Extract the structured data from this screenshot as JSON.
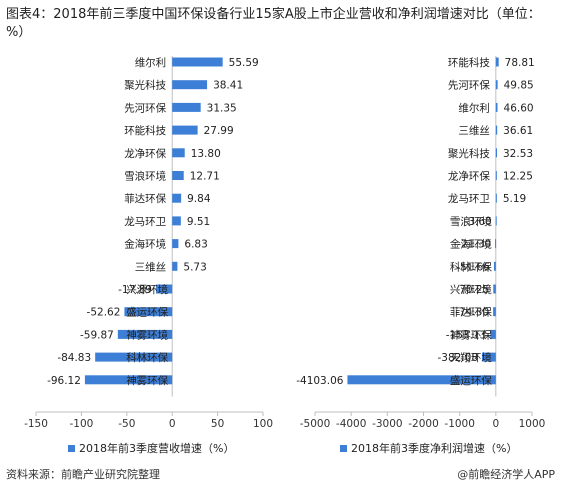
{
  "title": "图表4：2018年前三季度中国环保设备行业15家A股上市企业营收和净利润增速对比（单位：%）",
  "footer": {
    "source": "资料来源：前瞻产业研究院整理",
    "brand": "@前瞻经济学人APP"
  },
  "colors": {
    "bar": "#3d7fd6",
    "axis": "#bfbfbf",
    "legend_swatch": "#3d7fd6"
  },
  "chart_data": [
    {
      "type": "bar",
      "orientation": "horizontal",
      "categories": [
        "维尔利",
        "聚光科技",
        "先河环保",
        "环能科技",
        "龙净环保",
        "雪浪环境",
        "菲达环保",
        "龙马环卫",
        "金海环境",
        "三维丝",
        "兴源环境",
        "盛运环保",
        "神雾环境",
        "科林环保",
        "神雾环保"
      ],
      "series": [
        {
          "name": "2018年前3季度营收增速（%）",
          "values": [
            55.59,
            38.41,
            31.35,
            27.99,
            13.8,
            12.71,
            9.84,
            9.51,
            6.83,
            5.73,
            -17.89,
            -52.62,
            -59.87,
            -84.83,
            -96.12
          ],
          "labels": [
            "55.59",
            "38.41",
            "31.35",
            "27.99",
            "13.80",
            "12.71",
            "9.84",
            "9.51",
            "6.83",
            "5.73",
            "-17.89",
            "-52.62",
            "-59.87",
            "-84.83",
            "-96.12"
          ]
        }
      ],
      "xlim": [
        -150,
        100
      ],
      "xticks": [
        "-150",
        "-100",
        "-50",
        "0",
        "50",
        "100"
      ],
      "xtick_values": [
        -150,
        -100,
        -50,
        0,
        50,
        100
      ],
      "legend_position": "bottom"
    },
    {
      "type": "bar",
      "orientation": "horizontal",
      "categories": [
        "环能科技",
        "先河环保",
        "维尔利",
        "三维丝",
        "聚光科技",
        "龙净环保",
        "龙马环卫",
        "雪浪环境",
        "金海环境",
        "科林环保",
        "兴源环境",
        "菲达环保",
        "神雾环保",
        "天翔环境",
        "盛运环保"
      ],
      "series": [
        {
          "name": "2018年前3季度净利润增速（%）",
          "values": [
            78.81,
            49.85,
            46.6,
            36.61,
            32.53,
            12.25,
            5.19,
            -3.6,
            -21.3,
            -51.66,
            -70.25,
            -74.3,
            -153.13,
            -382.08,
            -4103.06
          ],
          "labels": [
            "78.81",
            "49.85",
            "46.60",
            "36.61",
            "32.53",
            "12.25",
            "5.19",
            "-3.60",
            "-21.30",
            "-51.66",
            "-70.25",
            "-74.30",
            "-153.13",
            "-382.08",
            "-4103.06"
          ]
        }
      ],
      "xlim": [
        -5000,
        1000
      ],
      "xticks": [
        "-5000",
        "-4000",
        "-3000",
        "-2000",
        "-1000",
        "0",
        "1000"
      ],
      "xtick_values": [
        -5000,
        -4000,
        -3000,
        -2000,
        -1000,
        0,
        1000
      ],
      "legend_position": "bottom"
    }
  ]
}
